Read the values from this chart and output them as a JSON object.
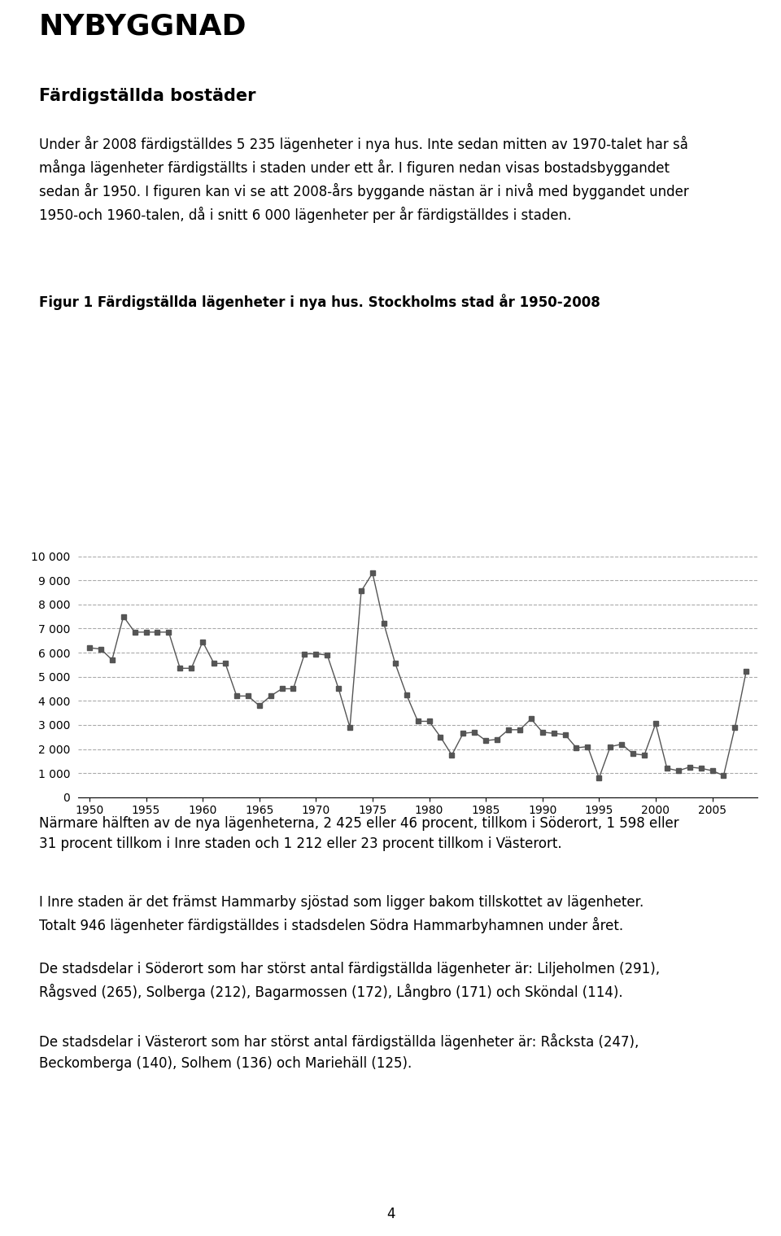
{
  "title_main": "NYBYGGNAD",
  "subtitle": "Färdigställda bostäder",
  "para1": "Under år 2008 färdigställdes 5 235 lägenheter i nya hus. Inte sedan mitten av 1970-talet har så\nmånga lägenheter färdigställts i staden under ett år. I figuren nedan visas bostadsbyggandet\nsedan år 1950. I figuren kan vi se att 2008-års byggande nästan är i nivå med byggandet under\n1950-och 1960-talen, då i snitt 6 000 lägenheter per år färdigställdes i staden.",
  "fig_caption": "Figur 1 Färdigställda lägenheter i nya hus. Stockholms stad år 1950-2008",
  "para2": "Närmare hälften av de nya lägenheterna, 2 425 eller 46 procent, tillkom i Söderort, 1 598 eller\n31 procent tillkom i Inre staden och 1 212 eller 23 procent tillkom i Västerort.",
  "para3": "I Inre staden är det främst Hammarby sjöstad som ligger bakom tillskottet av lägenheter.\nTotalt 946 lägenheter färdigställdes i stadsdelen Södra Hammarbyhamnen under året.",
  "para4": "De stadsdelar i Söderort som har störst antal färdigställda lägenheter är: Liljeholmen (291),\nRågsved (265), Solberga (212), Bagarmossen (172), Långbro (171) och Sköndal (114).",
  "para5": "De stadsdelar i Västerort som har störst antal färdigställda lägenheter är: Råcksta (247),\nBeckomberga (140), Solhem (136) och Mariehäll (125).",
  "page_number": "4",
  "years": [
    1950,
    1951,
    1952,
    1953,
    1954,
    1955,
    1956,
    1957,
    1958,
    1959,
    1960,
    1961,
    1962,
    1963,
    1964,
    1965,
    1966,
    1967,
    1968,
    1969,
    1970,
    1971,
    1972,
    1973,
    1974,
    1975,
    1976,
    1977,
    1978,
    1979,
    1980,
    1981,
    1982,
    1983,
    1984,
    1985,
    1986,
    1987,
    1988,
    1989,
    1990,
    1991,
    1992,
    1993,
    1994,
    1995,
    1996,
    1997,
    1998,
    1999,
    2000,
    2001,
    2002,
    2003,
    2004,
    2005,
    2006,
    2007,
    2008
  ],
  "values": [
    6200,
    6150,
    5700,
    7500,
    6850,
    6850,
    6850,
    6850,
    5350,
    5350,
    6450,
    5550,
    5550,
    4200,
    4200,
    3800,
    4200,
    4500,
    4500,
    5950,
    5950,
    5900,
    4500,
    2900,
    8550,
    9300,
    7200,
    5550,
    4250,
    3150,
    3150,
    2500,
    1750,
    2650,
    2700,
    2350,
    2400,
    2800,
    2800,
    3250,
    2700,
    2650,
    2600,
    2050,
    2100,
    800,
    2100,
    2200,
    1800,
    1750,
    3050,
    1200,
    1100,
    1250,
    1200,
    1100,
    900,
    2900,
    5235
  ],
  "ylim": [
    0,
    10000
  ],
  "yticks": [
    0,
    1000,
    2000,
    3000,
    4000,
    5000,
    6000,
    7000,
    8000,
    9000,
    10000
  ],
  "xticks": [
    1950,
    1955,
    1960,
    1965,
    1970,
    1975,
    1980,
    1985,
    1990,
    1995,
    2000,
    2005
  ],
  "line_color": "#555555",
  "marker_color": "#555555",
  "grid_color": "#aaaaaa",
  "bg_color": "#ffffff"
}
